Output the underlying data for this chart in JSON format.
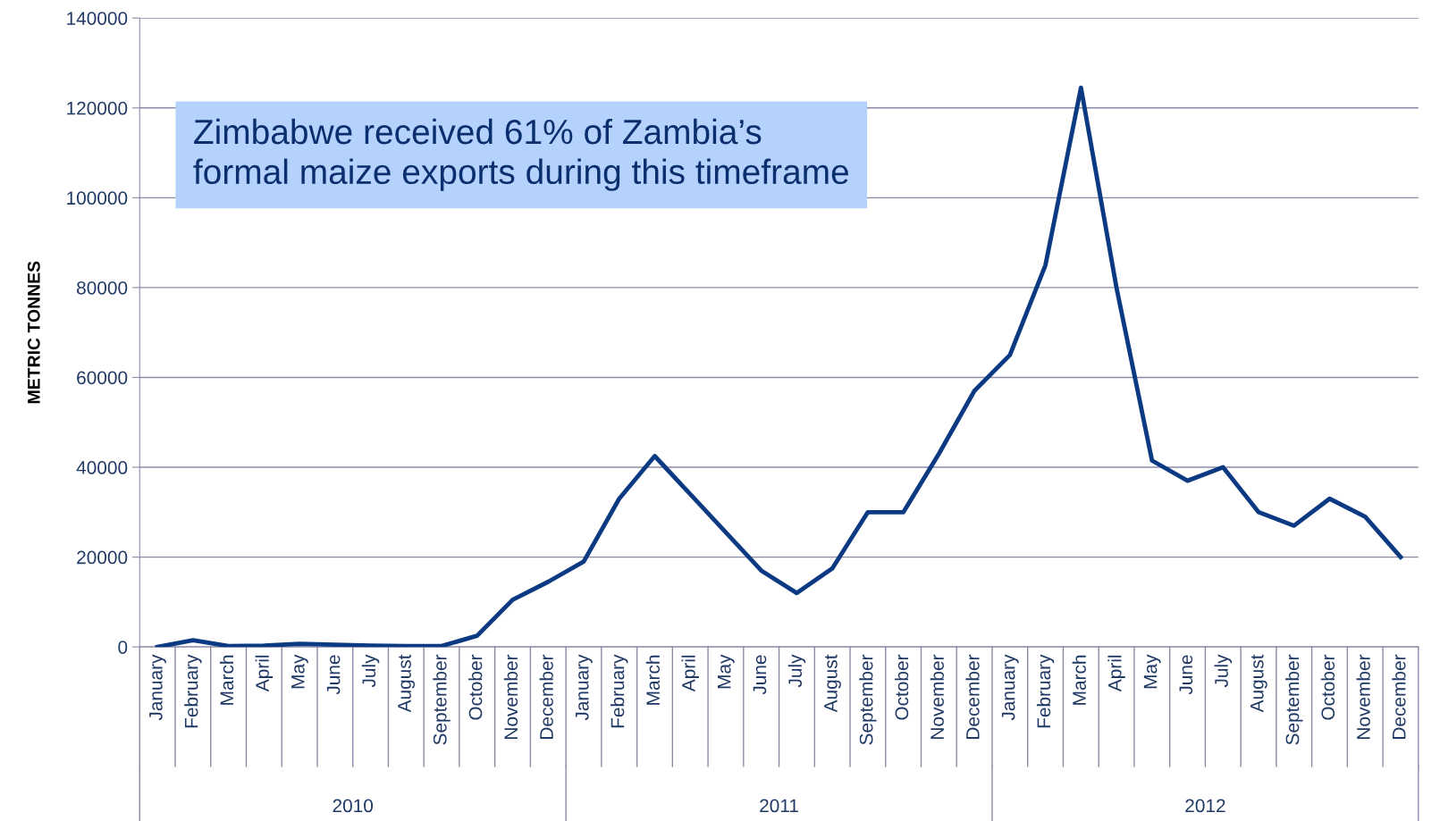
{
  "chart_data": {
    "type": "line",
    "ylabel": "METRIC TONNES",
    "categories": [
      "January",
      "February",
      "March",
      "April",
      "May",
      "June",
      "July",
      "August",
      "September",
      "October",
      "November",
      "December",
      "January",
      "February",
      "March",
      "April",
      "May",
      "June",
      "July",
      "August",
      "September",
      "October",
      "November",
      "December",
      "January",
      "February",
      "March",
      "April",
      "May",
      "June",
      "July",
      "August",
      "September",
      "October",
      "November",
      "December"
    ],
    "series": [
      {
        "color": "#0b3a82",
        "values": [
          0,
          1500,
          200,
          300,
          700,
          500,
          300,
          200,
          200,
          2500,
          10500,
          14500,
          19000,
          33000,
          42500,
          34000,
          25500,
          17000,
          12000,
          17500,
          30000,
          30000,
          43000,
          57000,
          65000,
          85000,
          124500,
          80000,
          41500,
          37000,
          40000,
          30000,
          27000,
          33000,
          29000,
          20000
        ]
      }
    ],
    "ylim": [
      0,
      140000
    ],
    "yticks": [
      0,
      20000,
      40000,
      60000,
      80000,
      100000,
      120000,
      140000
    ],
    "grid": "y",
    "marker": "none",
    "line_style": "solid",
    "annotations": [
      "Zimbabwe received 61% of Zambia’s\nformal maize exports during this timeframe",
      "2010",
      "2011",
      "2012"
    ]
  }
}
